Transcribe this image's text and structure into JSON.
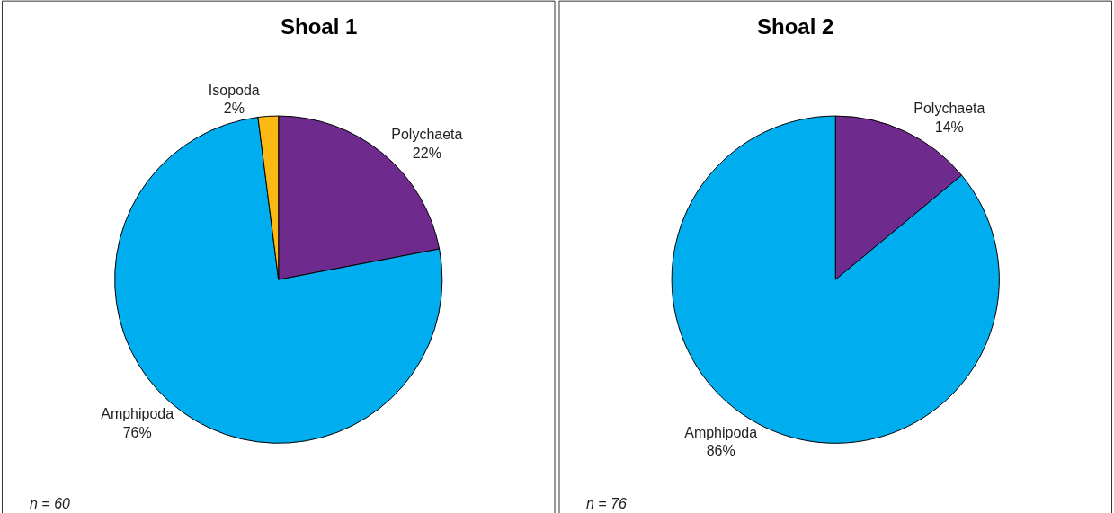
{
  "chart_data": [
    {
      "type": "pie",
      "title": "Shoal 1",
      "categories": [
        "Polychaeta",
        "Amphipoda",
        "Isopoda"
      ],
      "values": [
        22,
        76,
        2
      ],
      "value_labels": [
        "22%",
        "76%",
        "2%"
      ],
      "colors": [
        "#6f2a8e",
        "#00adee",
        "#fdb913"
      ],
      "legend": false,
      "annotations": [
        "n = 60"
      ]
    },
    {
      "type": "pie",
      "title": "Shoal 2",
      "categories": [
        "Polychaeta",
        "Amphipoda"
      ],
      "values": [
        14,
        86
      ],
      "value_labels": [
        "14%",
        "86%"
      ],
      "colors": [
        "#6f2a8e",
        "#00adee"
      ],
      "legend": false,
      "annotations": [
        "n = 76"
      ]
    }
  ]
}
